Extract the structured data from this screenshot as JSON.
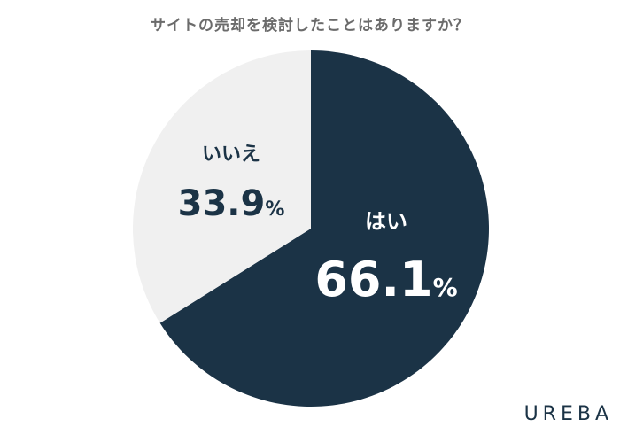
{
  "chart_data": {
    "type": "pie",
    "title": "サイトの売却を検討したことはありますか？",
    "slices": [
      {
        "label": "はい",
        "value": 66.1,
        "display": "66.1",
        "unit": "%",
        "color": "#1b3346",
        "text_color": "#ffffff"
      },
      {
        "label": "いいえ",
        "value": 33.9,
        "display": "33.9",
        "unit": "%",
        "color": "#f0f0f0",
        "text_color": "#1b3346"
      }
    ],
    "start": "12 o'clock",
    "direction": "clockwise"
  },
  "brand": "UREBA"
}
